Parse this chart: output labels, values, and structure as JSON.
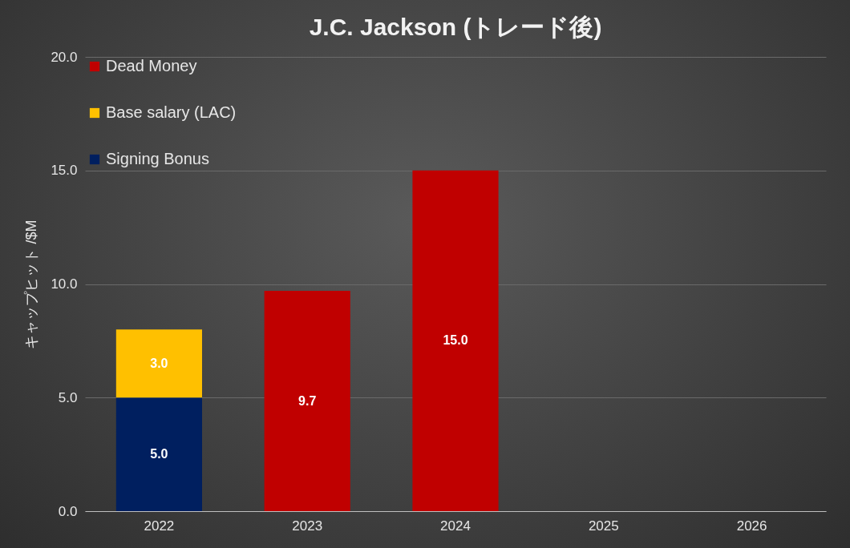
{
  "chart_data": {
    "type": "bar",
    "title": "J.C. Jackson (トレード後)",
    "ylabel": "キャップヒット /$M",
    "categories": [
      "2022",
      "2023",
      "2024",
      "2025",
      "2026"
    ],
    "stacked": true,
    "series": [
      {
        "name": "Signing Bonus",
        "color": "#001f5f",
        "values": [
          5.0,
          null,
          null,
          null,
          null
        ],
        "value_labels": [
          "5.0",
          null,
          null,
          null,
          null
        ]
      },
      {
        "name": "Base salary (LAC)",
        "color": "#ffc000",
        "values": [
          3.0,
          null,
          null,
          null,
          null
        ],
        "value_labels": [
          "3.0",
          null,
          null,
          null,
          null
        ]
      },
      {
        "name": "Dead Money",
        "color": "#c00000",
        "values": [
          null,
          9.7,
          15.0,
          null,
          null
        ],
        "value_labels": [
          null,
          "9.7",
          "15.0",
          null,
          null
        ]
      }
    ],
    "ylim": [
      0,
      20
    ],
    "yticks": [
      {
        "value": 0,
        "label": "0.0"
      },
      {
        "value": 5,
        "label": "5.0"
      },
      {
        "value": 10,
        "label": "10.0"
      },
      {
        "value": 15,
        "label": "15.0"
      },
      {
        "value": 20,
        "label": "20.0"
      }
    ],
    "grid": "y",
    "legend": "top left"
  }
}
